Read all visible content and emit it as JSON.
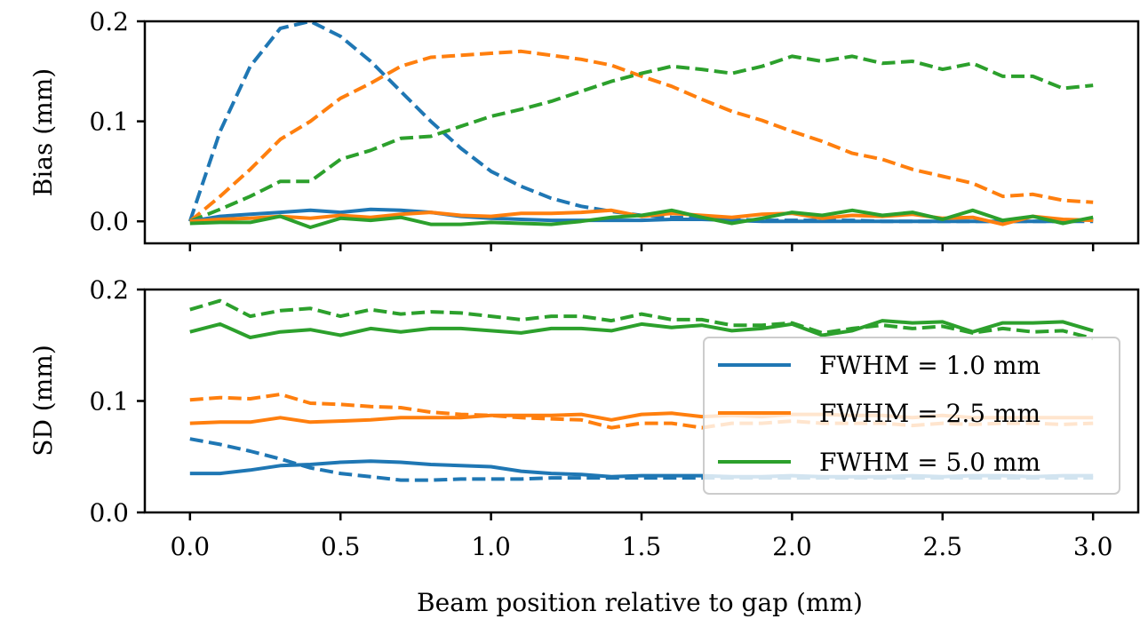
{
  "xlabel": "Beam position relative to gap (mm)",
  "x_ticks": [
    {
      "value": 0.0,
      "label": "0.0"
    },
    {
      "value": 0.5,
      "label": "0.5"
    },
    {
      "value": 1.0,
      "label": "1.0"
    },
    {
      "value": 1.5,
      "label": "1.5"
    },
    {
      "value": 2.0,
      "label": "2.0"
    },
    {
      "value": 2.5,
      "label": "2.5"
    },
    {
      "value": 3.0,
      "label": "3.0"
    }
  ],
  "colors": {
    "fwhm_1_0": "#1f77b4",
    "fwhm_2_5": "#ff7f0e",
    "fwhm_5_0": "#2ca02c"
  },
  "legend": {
    "location": "lower-right of bottom panel",
    "entries": [
      {
        "label": "FWHM = 1.0 mm",
        "color_key": "fwhm_1_0"
      },
      {
        "label": "FWHM = 2.5 mm",
        "color_key": "fwhm_2_5"
      },
      {
        "label": "FWHM = 5.0 mm",
        "color_key": "fwhm_5_0"
      }
    ]
  },
  "chart_data": [
    {
      "type": "line",
      "panel": "top",
      "title": "",
      "xlabel": "",
      "ylabel": "Bias (mm)",
      "xlim": [
        -0.15,
        3.15
      ],
      "ylim": [
        -0.022,
        0.2
      ],
      "y_ticks": [
        {
          "value": 0.0,
          "label": "0.0"
        },
        {
          "value": 0.1,
          "label": "0.1"
        },
        {
          "value": 0.2,
          "label": "0.2"
        }
      ],
      "x": [
        0.0,
        0.1,
        0.2,
        0.3,
        0.4,
        0.5,
        0.6,
        0.7,
        0.8,
        0.9,
        1.0,
        1.1,
        1.2,
        1.3,
        1.4,
        1.5,
        1.6,
        1.7,
        1.8,
        1.9,
        2.0,
        2.1,
        2.2,
        2.3,
        2.4,
        2.5,
        2.6,
        2.7,
        2.8,
        2.9,
        3.0
      ],
      "series": [
        {
          "name": "FWHM = 1.0 mm (dashed)",
          "color_key": "fwhm_1_0",
          "style": "dashed",
          "values": [
            0.0,
            0.09,
            0.155,
            0.193,
            0.2,
            0.185,
            0.16,
            0.13,
            0.1,
            0.073,
            0.05,
            0.035,
            0.023,
            0.015,
            0.01,
            0.006,
            0.004,
            0.003,
            0.002,
            0.001,
            0.001,
            0.001,
            0.001,
            0.0,
            0.0,
            0.0,
            0.0,
            0.0,
            0.0,
            0.0,
            0.0
          ]
        },
        {
          "name": "FWHM = 2.5 mm (dashed)",
          "color_key": "fwhm_2_5",
          "style": "dashed",
          "values": [
            0.0,
            0.025,
            0.052,
            0.082,
            0.1,
            0.123,
            0.138,
            0.155,
            0.164,
            0.166,
            0.168,
            0.17,
            0.166,
            0.162,
            0.156,
            0.145,
            0.135,
            0.122,
            0.11,
            0.101,
            0.09,
            0.08,
            0.068,
            0.062,
            0.052,
            0.045,
            0.038,
            0.025,
            0.027,
            0.021,
            0.019
          ]
        },
        {
          "name": "FWHM = 5.0 mm (dashed)",
          "color_key": "fwhm_5_0",
          "style": "dashed",
          "values": [
            0.0,
            0.012,
            0.025,
            0.04,
            0.04,
            0.062,
            0.071,
            0.083,
            0.085,
            0.095,
            0.105,
            0.112,
            0.12,
            0.13,
            0.14,
            0.148,
            0.155,
            0.152,
            0.148,
            0.155,
            0.165,
            0.16,
            0.165,
            0.158,
            0.16,
            0.152,
            0.158,
            0.145,
            0.145,
            0.133,
            0.136
          ]
        },
        {
          "name": "FWHM = 1.0 mm (solid)",
          "color_key": "fwhm_1_0",
          "style": "solid",
          "values": [
            0.0,
            0.005,
            0.007,
            0.009,
            0.011,
            0.009,
            0.012,
            0.011,
            0.009,
            0.005,
            0.003,
            0.002,
            0.001,
            0.001,
            0.001,
            0.001,
            0.002,
            0.002,
            0.001,
            0.0,
            0.0,
            0.0,
            0.0,
            0.0,
            0.0,
            0.0,
            0.0,
            0.0,
            0.0,
            0.0,
            0.002
          ]
        },
        {
          "name": "FWHM = 2.5 mm (solid)",
          "color_key": "fwhm_2_5",
          "style": "solid",
          "values": [
            0.0,
            0.002,
            0.003,
            0.005,
            0.003,
            0.006,
            0.004,
            0.007,
            0.009,
            0.006,
            0.005,
            0.008,
            0.008,
            0.009,
            0.011,
            0.005,
            0.008,
            0.006,
            0.004,
            0.007,
            0.008,
            0.003,
            0.006,
            0.005,
            0.007,
            0.003,
            0.004,
            -0.003,
            0.005,
            0.002,
            0.001
          ]
        },
        {
          "name": "FWHM = 5.0 mm (solid)",
          "color_key": "fwhm_5_0",
          "style": "solid",
          "values": [
            -0.002,
            -0.001,
            -0.001,
            0.005,
            -0.006,
            0.003,
            0.001,
            0.004,
            -0.003,
            -0.003,
            -0.001,
            -0.002,
            -0.003,
            0.0,
            0.004,
            0.006,
            0.011,
            0.004,
            -0.002,
            0.003,
            0.009,
            0.006,
            0.011,
            0.006,
            0.009,
            0.002,
            0.011,
            0.001,
            0.005,
            -0.002,
            0.004
          ]
        }
      ]
    },
    {
      "type": "line",
      "panel": "bottom",
      "title": "",
      "xlabel": "Beam position relative to gap (mm)",
      "ylabel": "SD (mm)",
      "xlim": [
        -0.15,
        3.15
      ],
      "ylim": [
        0.0,
        0.2
      ],
      "y_ticks": [
        {
          "value": 0.0,
          "label": "0.0"
        },
        {
          "value": 0.1,
          "label": "0.1"
        },
        {
          "value": 0.2,
          "label": "0.2"
        }
      ],
      "x": [
        0.0,
        0.1,
        0.2,
        0.3,
        0.4,
        0.5,
        0.6,
        0.7,
        0.8,
        0.9,
        1.0,
        1.1,
        1.2,
        1.3,
        1.4,
        1.5,
        1.6,
        1.7,
        1.8,
        1.9,
        2.0,
        2.1,
        2.2,
        2.3,
        2.4,
        2.5,
        2.6,
        2.7,
        2.8,
        2.9,
        3.0
      ],
      "series": [
        {
          "name": "FWHM = 1.0 mm (dashed)",
          "color_key": "fwhm_1_0",
          "style": "dashed",
          "values": [
            0.066,
            0.061,
            0.055,
            0.048,
            0.04,
            0.035,
            0.032,
            0.029,
            0.029,
            0.03,
            0.03,
            0.03,
            0.031,
            0.031,
            0.031,
            0.031,
            0.031,
            0.031,
            0.031,
            0.031,
            0.031,
            0.031,
            0.031,
            0.031,
            0.031,
            0.031,
            0.031,
            0.031,
            0.031,
            0.031,
            0.031
          ]
        },
        {
          "name": "FWHM = 2.5 mm (dashed)",
          "color_key": "fwhm_2_5",
          "style": "dashed",
          "values": [
            0.101,
            0.103,
            0.102,
            0.106,
            0.098,
            0.097,
            0.095,
            0.094,
            0.09,
            0.088,
            0.087,
            0.085,
            0.084,
            0.083,
            0.076,
            0.08,
            0.08,
            0.076,
            0.08,
            0.08,
            0.082,
            0.08,
            0.08,
            0.08,
            0.078,
            0.08,
            0.079,
            0.08,
            0.08,
            0.079,
            0.08
          ]
        },
        {
          "name": "FWHM = 5.0 mm (dashed)",
          "color_key": "fwhm_5_0",
          "style": "dashed",
          "values": [
            0.182,
            0.19,
            0.176,
            0.181,
            0.183,
            0.176,
            0.182,
            0.178,
            0.18,
            0.179,
            0.176,
            0.173,
            0.176,
            0.176,
            0.172,
            0.178,
            0.173,
            0.173,
            0.168,
            0.168,
            0.17,
            0.161,
            0.165,
            0.168,
            0.165,
            0.167,
            0.161,
            0.165,
            0.162,
            0.163,
            0.156
          ]
        },
        {
          "name": "FWHM = 1.0 mm (solid)",
          "color_key": "fwhm_1_0",
          "style": "solid",
          "values": [
            0.035,
            0.035,
            0.038,
            0.042,
            0.043,
            0.045,
            0.046,
            0.045,
            0.043,
            0.042,
            0.041,
            0.037,
            0.035,
            0.034,
            0.032,
            0.033,
            0.033,
            0.033,
            0.032,
            0.032,
            0.033,
            0.032,
            0.032,
            0.032,
            0.033,
            0.032,
            0.033,
            0.033,
            0.032,
            0.033,
            0.033
          ]
        },
        {
          "name": "FWHM = 2.5 mm (solid)",
          "color_key": "fwhm_2_5",
          "style": "solid",
          "values": [
            0.08,
            0.081,
            0.081,
            0.085,
            0.081,
            0.082,
            0.083,
            0.085,
            0.085,
            0.085,
            0.087,
            0.087,
            0.087,
            0.088,
            0.083,
            0.088,
            0.089,
            0.086,
            0.087,
            0.086,
            0.088,
            0.088,
            0.087,
            0.087,
            0.085,
            0.087,
            0.085,
            0.085,
            0.085,
            0.085,
            0.085
          ]
        },
        {
          "name": "FWHM = 5.0 mm (solid)",
          "color_key": "fwhm_5_0",
          "style": "solid",
          "values": [
            0.162,
            0.169,
            0.157,
            0.162,
            0.164,
            0.159,
            0.165,
            0.162,
            0.165,
            0.165,
            0.163,
            0.161,
            0.165,
            0.165,
            0.163,
            0.169,
            0.166,
            0.168,
            0.163,
            0.165,
            0.169,
            0.159,
            0.163,
            0.172,
            0.17,
            0.171,
            0.162,
            0.17,
            0.17,
            0.171,
            0.163
          ]
        }
      ]
    }
  ]
}
